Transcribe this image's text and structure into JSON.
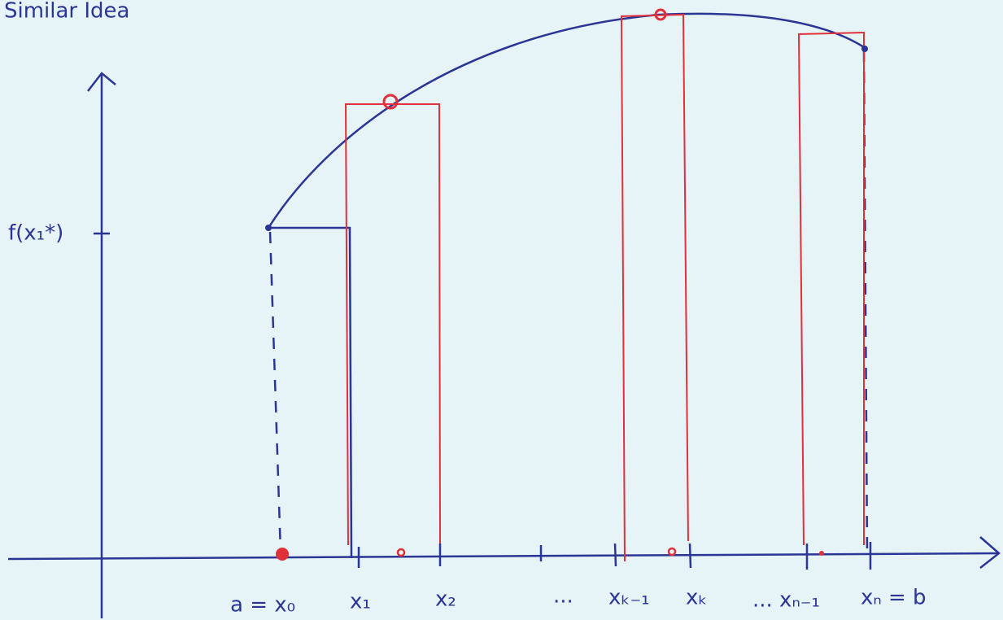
{
  "title": "Similar Idea",
  "y_label": "f(x₁*)",
  "x_labels": [
    "a = x₀",
    "x₁",
    "x₂",
    "...",
    "xₖ₋₁",
    "xₖ",
    "... xₙ₋₁",
    "xₙ = b"
  ]
}
